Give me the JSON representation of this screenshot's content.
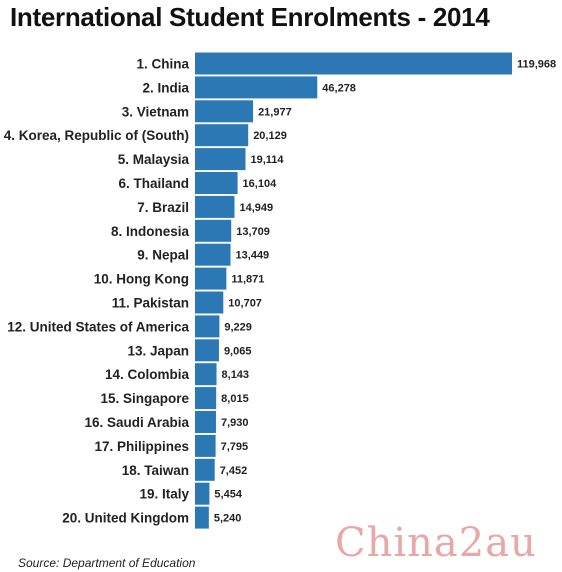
{
  "title": "International Student Enrolments - 2014",
  "source": "Source: Department of Education",
  "watermark": "China2au",
  "colors": {
    "bar": "#2b78b5"
  },
  "chart_data": {
    "type": "bar",
    "orientation": "horizontal",
    "title": "International Student Enrolments - 2014",
    "categories": [
      "1. China",
      "2. India",
      "3. Vietnam",
      "4. Korea, Republic of (South)",
      "5. Malaysia",
      "6. Thailand",
      "7. Brazil",
      "8. Indonesia",
      "9. Nepal",
      "10. Hong Kong",
      "11. Pakistan",
      "12. United States of America",
      "13. Japan",
      "14. Colombia",
      "15. Singapore",
      "16. Saudi Arabia",
      "17. Philippines",
      "18. Taiwan",
      "19. Italy",
      "20. United Kingdom"
    ],
    "values": [
      119968,
      46278,
      21977,
      20129,
      19114,
      16104,
      14949,
      13709,
      13449,
      11871,
      10707,
      9229,
      9065,
      8143,
      8015,
      7930,
      7795,
      7452,
      5454,
      5240
    ],
    "value_labels": [
      "119,968",
      "46,278",
      "21,977",
      "20,129",
      "19,114",
      "16,104",
      "14,949",
      "13,709",
      "13,449",
      "11,871",
      "10,707",
      "9,229",
      "9,065",
      "8,143",
      "8,015",
      "7,930",
      "7,795",
      "7,452",
      "5,454",
      "5,240"
    ],
    "xlim": [
      0,
      119968
    ],
    "grid": false,
    "legend": "none",
    "data_labels": true
  }
}
